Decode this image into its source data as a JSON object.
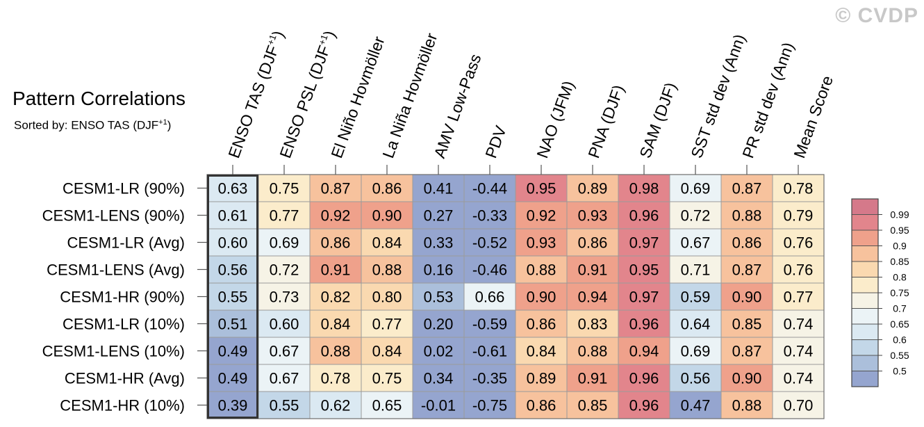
{
  "watermark": "© CVDP",
  "title": "Pattern Correlations",
  "subtitle": {
    "prefix": "Sorted by: ENSO TAS (DJF",
    "sup": "+1",
    "suffix": ")"
  },
  "chart_data": {
    "type": "heatmap",
    "title": "Pattern Correlations",
    "subtitle": "Sorted by: ENSO TAS (DJF+1)",
    "columns": [
      {
        "main": "ENSO TAS (DJF",
        "sup": "+1",
        "tail": ")"
      },
      {
        "main": "ENSO PSL (DJF",
        "sup": "+1",
        "tail": ")"
      },
      {
        "main": "El Niño Hovmöller",
        "sup": "",
        "tail": ""
      },
      {
        "main": "La Niña Hovmöller",
        "sup": "",
        "tail": ""
      },
      {
        "main": "AMV Low-Pass",
        "sup": "",
        "tail": ""
      },
      {
        "main": "PDV",
        "sup": "",
        "tail": ""
      },
      {
        "main": "NAO (JFM)",
        "sup": "",
        "tail": ""
      },
      {
        "main": "PNA (DJF)",
        "sup": "",
        "tail": ""
      },
      {
        "main": "SAM (DJF)",
        "sup": "",
        "tail": ""
      },
      {
        "main": "SST std dev (Ann)",
        "sup": "",
        "tail": ""
      },
      {
        "main": "PR std dev (Ann)",
        "sup": "",
        "tail": ""
      },
      {
        "main": "Mean Score",
        "sup": "",
        "tail": ""
      }
    ],
    "rows": [
      "CESM1-LR (90%)",
      "CESM1-LENS (90%)",
      "CESM1-LR (Avg)",
      "CESM1-LENS (Avg)",
      "CESM1-HR (90%)",
      "CESM1-LR (10%)",
      "CESM1-LENS (10%)",
      "CESM1-HR (Avg)",
      "CESM1-HR (10%)"
    ],
    "values": [
      [
        "0.63",
        "0.75",
        "0.87",
        "0.86",
        "0.41",
        "-0.44",
        "0.95",
        "0.89",
        "0.98",
        "0.69",
        "0.87",
        "0.78"
      ],
      [
        "0.61",
        "0.77",
        "0.92",
        "0.90",
        "0.27",
        "-0.33",
        "0.92",
        "0.93",
        "0.96",
        "0.72",
        "0.88",
        "0.79"
      ],
      [
        "0.60",
        "0.69",
        "0.86",
        "0.84",
        "0.33",
        "-0.52",
        "0.93",
        "0.86",
        "0.97",
        "0.67",
        "0.86",
        "0.76"
      ],
      [
        "0.56",
        "0.72",
        "0.91",
        "0.88",
        "0.16",
        "-0.46",
        "0.88",
        "0.91",
        "0.95",
        "0.71",
        "0.87",
        "0.76"
      ],
      [
        "0.55",
        "0.73",
        "0.82",
        "0.80",
        "0.53",
        "0.66",
        "0.90",
        "0.94",
        "0.97",
        "0.59",
        "0.90",
        "0.77"
      ],
      [
        "0.51",
        "0.60",
        "0.84",
        "0.77",
        "0.20",
        "-0.59",
        "0.86",
        "0.83",
        "0.96",
        "0.64",
        "0.85",
        "0.74"
      ],
      [
        "0.49",
        "0.67",
        "0.88",
        "0.84",
        "0.02",
        "-0.61",
        "0.84",
        "0.88",
        "0.94",
        "0.69",
        "0.87",
        "0.74"
      ],
      [
        "0.49",
        "0.67",
        "0.78",
        "0.75",
        "0.34",
        "-0.35",
        "0.89",
        "0.91",
        "0.96",
        "0.56",
        "0.90",
        "0.74"
      ],
      [
        "0.39",
        "0.55",
        "0.62",
        "0.65",
        "-0.01",
        "-0.75",
        "0.86",
        "0.85",
        "0.96",
        "0.47",
        "0.88",
        "0.70"
      ]
    ],
    "highlighted_column": 0,
    "colorbar": {
      "labels": [
        "0.99",
        "0.95",
        "0.9",
        "0.85",
        "0.8",
        "0.75",
        "0.7",
        "0.65",
        "0.6",
        "0.55",
        "0.5"
      ],
      "thresholds": [
        0.5,
        0.55,
        0.6,
        0.65,
        0.7,
        0.75,
        0.8,
        0.85,
        0.9,
        0.95,
        0.99
      ],
      "colors": [
        "#95a5cf",
        "#abbfdb",
        "#c3d7e8",
        "#dbe9f2",
        "#ebf3f6",
        "#f6f3e6",
        "#fbeccb",
        "#fad9b0",
        "#f7c29d",
        "#efa18b",
        "#e2858c",
        "#d5798a"
      ]
    }
  }
}
